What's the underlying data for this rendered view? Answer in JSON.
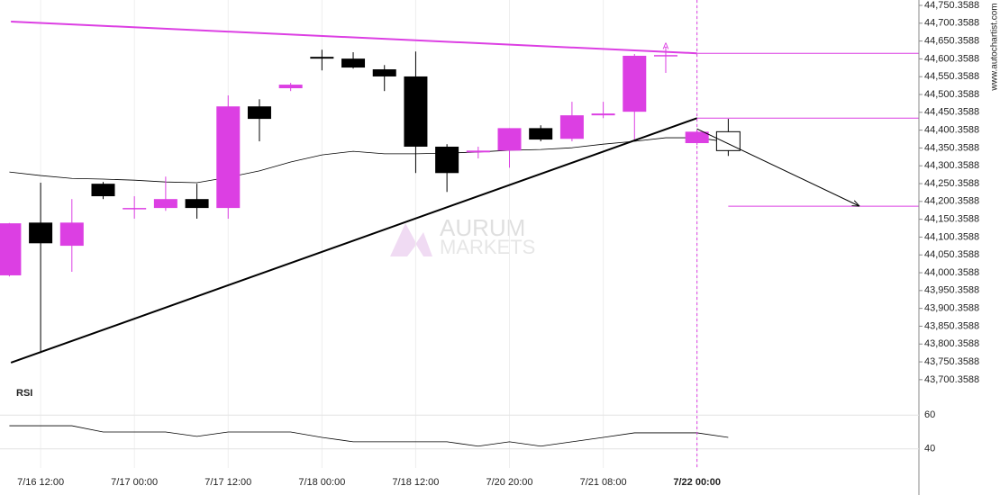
{
  "chart_data": {
    "type": "candlestick",
    "categories": [
      null,
      "7/16 12:00",
      null,
      null,
      "7/17 00:00",
      null,
      null,
      "7/17 12:00",
      null,
      null,
      "7/18 00:00",
      null,
      null,
      "7/18 12:00",
      null,
      null,
      "7/20 20:00",
      null,
      null,
      "7/21 08:00",
      null,
      null,
      "7/22 00:00"
    ],
    "highlight_category": 22,
    "open": [
      43993,
      44141,
      44076,
      44250,
      44182,
      44182,
      44207,
      44182,
      44467,
      44518,
      44606,
      44601,
      44571,
      44551,
      44354,
      44338,
      44343,
      44406,
      44376,
      44442,
      44452,
      44609,
      44364
    ],
    "high": [
      44140,
      44253,
      44207,
      44255,
      44215,
      44270,
      44250,
      44498,
      44487,
      44533,
      44626,
      44619,
      44583,
      44621,
      44361,
      44354,
      44406,
      44414,
      44480,
      44480,
      44614,
      44634,
      44401
    ],
    "low": [
      43990,
      43775,
      44003,
      44207,
      44152,
      44174,
      44152,
      44152,
      44369,
      44510,
      44568,
      44573,
      44510,
      44280,
      44227,
      44321,
      44295,
      44369,
      44369,
      44434,
      44371,
      44561,
      44359
    ],
    "close": [
      44139,
      44083,
      44141,
      44215,
      44182,
      44207,
      44182,
      44467,
      44432,
      44528,
      44601,
      44576,
      44551,
      44354,
      44280,
      44343,
      44406,
      44374,
      44442,
      44447,
      44609,
      44611,
      44396
    ],
    "bull_color": "#dc3fe3",
    "bear_color": "#000000",
    "forecast_candle": {
      "x": 23,
      "open": 44396,
      "high": 44432,
      "low": 44328,
      "close": 44343,
      "color": "#ffffff"
    },
    "moving_average": {
      "color": "#000000",
      "values": [
        44283,
        44273,
        44265,
        44263,
        44260,
        44255,
        44253,
        44268,
        44286,
        44311,
        44331,
        44341,
        44334,
        44334,
        44336,
        44339,
        44344,
        44346,
        44351,
        44361,
        44369,
        44379,
        44379,
        44367
      ]
    },
    "trendlines": [
      {
        "x": [
          0.05,
          22
        ],
        "y": [
          44705,
          44616
        ],
        "color": "#dc3fe3",
        "width": 2
      },
      {
        "x": [
          22,
          29.1
        ],
        "y": [
          44616,
          44616
        ],
        "color": "#dc3fe3",
        "width": 1
      },
      {
        "x": [
          0.05,
          22
        ],
        "y": [
          43748,
          44434
        ],
        "color": "#000000",
        "width": 2
      },
      {
        "x": [
          22,
          29.1
        ],
        "y": [
          44434,
          44434
        ],
        "color": "#dc3fe3",
        "width": 1
      },
      {
        "x": [
          23,
          29.1
        ],
        "y": [
          44187,
          44187
        ],
        "color": "#dc3fe3",
        "width": 1
      }
    ],
    "forecast_arrow": {
      "x": [
        22,
        27.2
      ],
      "y": [
        44404,
        44187
      ],
      "color": "#000000"
    },
    "marker": {
      "text": "A",
      "x": 21,
      "y": 44634,
      "color": "#dc3fe3"
    },
    "xlim": [
      -0.3,
      29.1
    ],
    "ylim": [
      43679.8,
      44765.5
    ],
    "yticks": [
      {
        "value": 44750.3588,
        "label": "44,750.3588"
      },
      {
        "value": 44700.3588,
        "label": "44,700.3588"
      },
      {
        "value": 44650.3588,
        "label": "44,650.3588"
      },
      {
        "value": 44600.3588,
        "label": "44,600.3588"
      },
      {
        "value": 44550.3588,
        "label": "44,550.3588"
      },
      {
        "value": 44500.3588,
        "label": "44,500.3588"
      },
      {
        "value": 44450.3588,
        "label": "44,450.3588"
      },
      {
        "value": 44400.3588,
        "label": "44,400.3588"
      },
      {
        "value": 44350.3588,
        "label": "44,350.3588"
      },
      {
        "value": 44300.3588,
        "label": "44,300.3588"
      },
      {
        "value": 44250.3588,
        "label": "44,250.3588"
      },
      {
        "value": 44200.3588,
        "label": "44,200.3588"
      },
      {
        "value": 44150.3588,
        "label": "44,150.3588"
      },
      {
        "value": 44100.3588,
        "label": "44,100.3588"
      },
      {
        "value": 44050.3588,
        "label": "44,050.3588"
      },
      {
        "value": 44000.3588,
        "label": "44,000.3588"
      },
      {
        "value": 43950.3588,
        "label": "43,950.3588"
      },
      {
        "value": 43900.3588,
        "label": "43,900.3588"
      },
      {
        "value": 43850.3588,
        "label": "43,850.3588"
      },
      {
        "value": 43800.3588,
        "label": "43,800.3588"
      },
      {
        "value": 43750.3588,
        "label": "43,750.3588"
      },
      {
        "value": 43700.3588,
        "label": "43,700.3588"
      }
    ],
    "rsi": {
      "title": "RSI",
      "color": "#000000",
      "values": [
        53.7,
        53.7,
        53.7,
        50,
        50,
        50,
        47.4,
        50,
        50,
        50,
        46.8,
        44.2,
        44.2,
        44.2,
        44.2,
        41.6,
        44.2,
        41.6,
        44.2,
        46.8,
        49.5,
        49.5,
        49.5,
        46.8
      ],
      "ylim": [
        34,
        66
      ],
      "yticks": [
        60,
        40
      ]
    },
    "watermark": [
      "AURUM",
      "MARKETS"
    ],
    "source": "www.autochartist.com"
  }
}
